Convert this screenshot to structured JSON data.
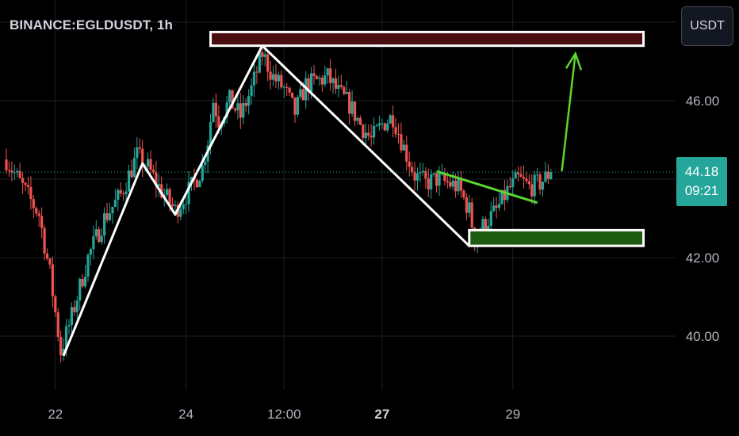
{
  "header": {
    "symbol_title": "BINANCE:EGLDUSDT, 1h",
    "currency_button": "USDT"
  },
  "price_tag": {
    "price": "44.18",
    "countdown": "09:21"
  },
  "colors": {
    "background": "#000000",
    "grid": "#1c1f26",
    "up_candle": "#26a69a",
    "down_candle": "#ef5350",
    "pattern_line": "#ffffff",
    "trend_line": "#5cd631",
    "resistance_zone": "#4a0d10",
    "support_zone": "#1e5c12",
    "price_tag": "#26a69a"
  },
  "chart_data": {
    "type": "candlestick",
    "symbol": "BINANCE:EGLDUSDT",
    "interval": "1h",
    "ylim": [
      38.4,
      49.3
    ],
    "y_ticks": [
      40.0,
      42.0,
      46.0
    ],
    "y_tick_labels": [
      "40.00",
      "42.00",
      "46.00"
    ],
    "x_range": [
      0,
      106
    ],
    "x_ticks": [
      {
        "label": "22",
        "x": 9,
        "bold": false
      },
      {
        "label": "24",
        "x": 33,
        "bold": false
      },
      {
        "label": "12:00",
        "x": 51,
        "bold": false
      },
      {
        "label": "27",
        "x": 69,
        "bold": true
      },
      {
        "label": "29",
        "x": 93,
        "bold": false
      }
    ],
    "last_price": 44.18,
    "anchors": [
      {
        "x": 0,
        "p": 44.5
      },
      {
        "x": 3,
        "p": 43.8
      },
      {
        "x": 6,
        "p": 43.1
      },
      {
        "x": 8,
        "p": 41.6
      },
      {
        "x": 10,
        "p": 39.6
      },
      {
        "x": 12,
        "p": 40.5
      },
      {
        "x": 15,
        "p": 42.0
      },
      {
        "x": 18,
        "p": 43.0
      },
      {
        "x": 21,
        "p": 43.6
      },
      {
        "x": 24,
        "p": 44.6
      },
      {
        "x": 26,
        "p": 44.3
      },
      {
        "x": 28,
        "p": 43.8
      },
      {
        "x": 31,
        "p": 43.2
      },
      {
        "x": 34,
        "p": 43.8
      },
      {
        "x": 36,
        "p": 44.3
      },
      {
        "x": 37,
        "p": 45.0
      },
      {
        "x": 38,
        "p": 46.0
      },
      {
        "x": 39,
        "p": 45.5
      },
      {
        "x": 41,
        "p": 46.0
      },
      {
        "x": 43,
        "p": 45.6
      },
      {
        "x": 45,
        "p": 46.3
      },
      {
        "x": 47,
        "p": 47.2
      },
      {
        "x": 49,
        "p": 46.6
      },
      {
        "x": 51,
        "p": 46.3
      },
      {
        "x": 53,
        "p": 45.7
      },
      {
        "x": 55,
        "p": 46.4
      },
      {
        "x": 57,
        "p": 46.5
      },
      {
        "x": 59,
        "p": 46.6
      },
      {
        "x": 61,
        "p": 46.2
      },
      {
        "x": 63,
        "p": 45.9
      },
      {
        "x": 65,
        "p": 45.4
      },
      {
        "x": 67,
        "p": 45.0
      },
      {
        "x": 69,
        "p": 45.4
      },
      {
        "x": 71,
        "p": 45.6
      },
      {
        "x": 73,
        "p": 44.8
      },
      {
        "x": 75,
        "p": 44.1
      },
      {
        "x": 77,
        "p": 43.9
      },
      {
        "x": 79,
        "p": 44.0
      },
      {
        "x": 81,
        "p": 43.9
      },
      {
        "x": 83,
        "p": 43.8
      },
      {
        "x": 85,
        "p": 43.2
      },
      {
        "x": 86,
        "p": 42.5
      },
      {
        "x": 88,
        "p": 42.9
      },
      {
        "x": 90,
        "p": 43.2
      },
      {
        "x": 92,
        "p": 43.7
      },
      {
        "x": 94,
        "p": 44.0
      },
      {
        "x": 96,
        "p": 43.8
      },
      {
        "x": 98,
        "p": 43.9
      },
      {
        "x": 100,
        "p": 44.18
      }
    ],
    "drawings": {
      "zigzag": [
        {
          "x": 10.5,
          "p": 39.5
        },
        {
          "x": 25,
          "p": 44.4
        },
        {
          "x": 31,
          "p": 43.1
        },
        {
          "x": 47,
          "p": 47.4
        },
        {
          "x": 85,
          "p": 42.3
        }
      ],
      "resistance_zone": {
        "x1": 37.5,
        "x2": 117,
        "p_low": 47.4,
        "p_high": 47.75
      },
      "support_zone": {
        "x1": 85,
        "x2": 117,
        "p_low": 42.3,
        "p_high": 42.7
      },
      "trend_line": [
        {
          "x": 79,
          "p": 44.2
        },
        {
          "x": 97.5,
          "p": 43.4
        }
      ],
      "arrow": [
        {
          "x": 102,
          "p": 44.2
        },
        {
          "x": 104.5,
          "p": 47.2
        }
      ]
    }
  }
}
